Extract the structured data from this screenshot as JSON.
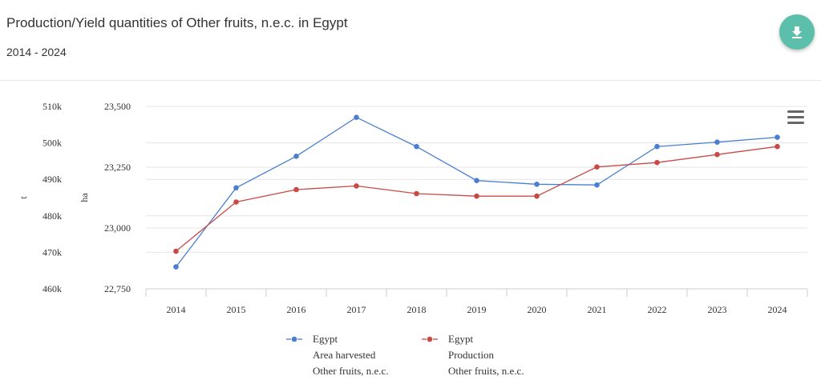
{
  "header": {
    "title": "Production/Yield quantities of Other fruits, n.e.c. in Egypt",
    "subtitle": "2014 - 2024"
  },
  "toolbar": {
    "download_icon": "download-icon",
    "menu_icon": "hamburger-menu-icon"
  },
  "chart_data": {
    "type": "line",
    "x": [
      "2014",
      "2015",
      "2016",
      "2017",
      "2018",
      "2019",
      "2020",
      "2021",
      "2022",
      "2023",
      "2024"
    ],
    "left_axis": {
      "label": "t",
      "ticks": [
        "460k",
        "470k",
        "480k",
        "490k",
        "500k",
        "510k"
      ],
      "range": [
        460000,
        510000
      ]
    },
    "right_axis": {
      "label": "ha",
      "ticks": [
        "22,750",
        "23,000",
        "23,250",
        "23,500"
      ],
      "range": [
        22750,
        23500
      ]
    },
    "series": [
      {
        "name": "Egypt Area harvested Other fruits, n.e.c.",
        "legend_lines": [
          "Egypt",
          "Area harvested",
          "Other fruits, n.e.c."
        ],
        "axis": "ha",
        "color": "#4a7fd0",
        "values": [
          22840,
          23165,
          23295,
          23455,
          23335,
          23195,
          23180,
          23177,
          23335,
          23353,
          23373
        ]
      },
      {
        "name": "Egypt Production Other fruits, n.e.c.",
        "legend_lines": [
          "Egypt",
          "Production",
          "Other fruits, n.e.c."
        ],
        "axis": "t",
        "color": "#c94a45",
        "values": [
          470300,
          483800,
          487200,
          488200,
          486100,
          485400,
          485400,
          493400,
          494600,
          496800,
          499000
        ]
      }
    ],
    "grid": true,
    "legend_position": "bottom"
  }
}
